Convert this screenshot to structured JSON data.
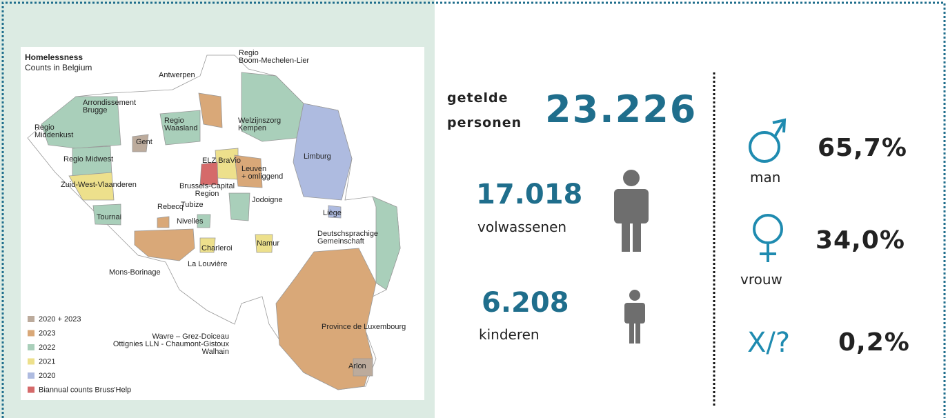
{
  "map": {
    "title": "Homelessness",
    "subtitle": "Counts in Belgium",
    "labels": [
      [
        "Regio",
        "Boom-Mechelen-Lier"
      ],
      [
        "Antwerpen"
      ],
      [
        "Arrondissement",
        "Brugge"
      ],
      [
        "Regio",
        "Middenkust"
      ],
      [
        "Regio",
        "Waasland"
      ],
      [
        "Welzijnszorg",
        "Kempen"
      ],
      [
        "Gent"
      ],
      [
        "Limburg"
      ],
      [
        "Regio Midwest"
      ],
      [
        "ELZ BraVio"
      ],
      [
        "Leuven",
        "+ omliggend"
      ],
      [
        "Zuid-West-Vlaanderen"
      ],
      [
        "Brussels-Capital",
        "Region"
      ],
      [
        "Tubize"
      ],
      [
        "Jodoigne"
      ],
      [
        "Rebecq"
      ],
      [
        "Liège"
      ],
      [
        "Tournai"
      ],
      [
        "Nivelles"
      ],
      [
        "Deutschsprachige",
        "Gemeinschaft"
      ],
      [
        "Namur"
      ],
      [
        "Charleroi"
      ],
      [
        "La Louvière"
      ],
      [
        "Mons-Borinage"
      ],
      [
        "Province de Luxembourg"
      ],
      [
        "Wavre – Grez-Doiceau",
        "Ottignies LLN - Chaumont-Gistoux",
        "Walhain"
      ],
      [
        "Arlon"
      ]
    ],
    "legend": [
      {
        "label": "2020 + 2023",
        "color": "#bcab9c"
      },
      {
        "label": "2023",
        "color": "#d9a878"
      },
      {
        "label": "2022",
        "color": "#a9cfba"
      },
      {
        "label": "2021",
        "color": "#ede08c"
      },
      {
        "label": "2020",
        "color": "#aebbe0"
      },
      {
        "label": "Biannual counts Bruss'Help",
        "color": "#d56a6a"
      }
    ]
  },
  "totals": {
    "label_lines": [
      "getelde",
      "personen"
    ],
    "value": "23.226"
  },
  "adults": {
    "value": "17.018",
    "label": "volwassenen"
  },
  "children": {
    "value": "6.208",
    "label": "kinderen"
  },
  "gender": [
    {
      "value": "65,7%",
      "label": "man"
    },
    {
      "value": "34,0%",
      "label": "vrouw"
    },
    {
      "symbol": "X/?",
      "value": "0,2%"
    }
  ]
}
